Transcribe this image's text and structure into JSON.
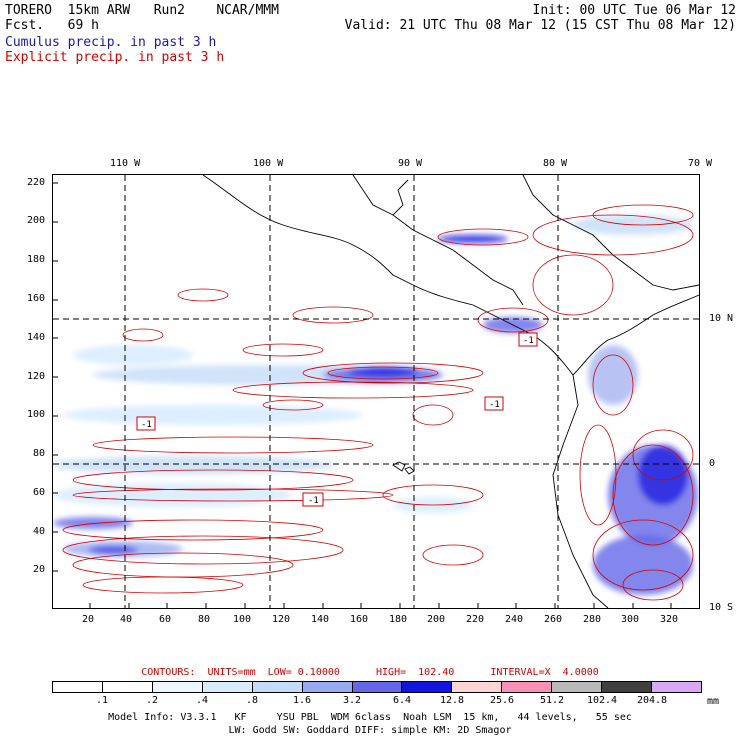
{
  "header": {
    "model": "TORERO  15km ARW   Run2    NCAR/MMM",
    "init": "Init: 00 UTC Tue 06 Mar 12",
    "fcst": "Fcst.   69 h",
    "valid": "Valid: 21 UTC Thu 08 Mar 12 (15 CST Thu 08 Mar 12)",
    "cumulus": "Cumulus precip. in past 3 h",
    "explicit": "Explicit precip. in past 3 h"
  },
  "axes": {
    "lon_labels": [
      "110 W",
      "100 W",
      "90 W",
      "80 W",
      "70 W"
    ],
    "lat_labels": [
      "10 N",
      "0",
      "10 S"
    ],
    "y_ticks": [
      "220",
      "200",
      "180",
      "160",
      "140",
      "120",
      "100",
      "80",
      "60",
      "40",
      "20"
    ],
    "x_ticks": [
      "20",
      "40",
      "60",
      "80",
      "100",
      "120",
      "140",
      "160",
      "180",
      "200",
      "220",
      "240",
      "260",
      "280",
      "300",
      "320"
    ]
  },
  "map_labels": [
    "-1",
    "-1",
    "-1",
    "-1"
  ],
  "contours": {
    "label": "CONTOURS:  UNITS=mm  LOW= 0.10000      HIGH=  102.40      INTERVAL=X  4.0000"
  },
  "colorbar": {
    "labels": [
      ".1",
      ".2",
      ".4",
      ".8",
      "1.6",
      "3.2",
      "6.4",
      "12.8",
      "25.6",
      "51.2",
      "102.4",
      "204.8"
    ],
    "unit": "mm",
    "colors": [
      "#ffffff",
      "#ffffff",
      "#eef6ff",
      "#d8ecff",
      "#c4dcf8",
      "#9aaaf0",
      "#6468e8",
      "#1414e0",
      "#ffd4d4",
      "#f890b8",
      "#b8b8b8",
      "#404040",
      "#d8a8f4"
    ]
  },
  "footer": {
    "line1": "Model Info: V3.3.1   KF     YSU PBL  WDM 6class  Noah LSM  15 km,   44 levels,   55 sec",
    "line2": "LW: Godd SW: Goddard DIFF: simple KM: 2D Smagor"
  }
}
